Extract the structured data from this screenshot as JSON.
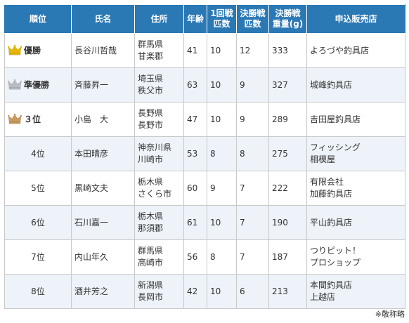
{
  "headers": {
    "rank": "順位",
    "name": "氏名",
    "address": "住所",
    "age": "年齢",
    "round1": [
      "1回戦",
      "匹数"
    ],
    "final_count": [
      "決勝戦",
      "匹数"
    ],
    "final_weight": [
      "決勝戦",
      "重量(g)"
    ],
    "shop": "申込販売店"
  },
  "colors": {
    "header_bg": "#2a78b4",
    "alt_row_bg": "#eef3f9",
    "gold": "#e7b800",
    "silver": "#b9bcc2",
    "bronze": "#c99a5e"
  },
  "rows": [
    {
      "rank": "優勝",
      "crown": "gold-crown-icon",
      "name": "長谷川哲哉",
      "pref": "群馬県",
      "city": "甘楽郡",
      "age": "41",
      "round1": "10",
      "final_count": "12",
      "weight": "333",
      "shop": [
        "よろづや釣具店"
      ]
    },
    {
      "rank": "準優勝",
      "crown": "silver-crown-icon",
      "name": "斉藤昇一",
      "pref": "埼玉県",
      "city": "秩父市",
      "age": "63",
      "round1": "10",
      "final_count": "9",
      "weight": "327",
      "shop": [
        "城峰釣具店"
      ]
    },
    {
      "rank": "３位",
      "crown": "bronze-crown-icon",
      "name": "小島　大",
      "pref": "長野県",
      "city": "長野市",
      "age": "47",
      "round1": "10",
      "final_count": "9",
      "weight": "289",
      "shop": [
        "吉田屋釣具店"
      ]
    },
    {
      "rank": "4位",
      "name": "本田晴彦",
      "pref": "神奈川県",
      "city": "川崎市",
      "age": "53",
      "round1": "8",
      "final_count": "8",
      "weight": "275",
      "shop": [
        "フィッシング",
        "相模屋"
      ]
    },
    {
      "rank": "5位",
      "name": "黒崎文夫",
      "pref": "栃木県",
      "city": "さくら市",
      "age": "60",
      "round1": "9",
      "final_count": "7",
      "weight": "222",
      "shop": [
        "有限会社",
        "加藤釣具店"
      ]
    },
    {
      "rank": "6位",
      "name": "石川嘉一",
      "pref": "栃木県",
      "city": "那須郡",
      "age": "61",
      "round1": "10",
      "final_count": "7",
      "weight": "190",
      "shop": [
        "平山釣具店"
      ]
    },
    {
      "rank": "7位",
      "name": "内山年久",
      "pref": "群馬県",
      "city": "高崎市",
      "age": "56",
      "round1": "8",
      "final_count": "7",
      "weight": "187",
      "shop": [
        "つりピット！",
        "プロショップ"
      ]
    },
    {
      "rank": "8位",
      "name": "酒井芳之",
      "pref": "新潟県",
      "city": "長岡市",
      "age": "42",
      "round1": "10",
      "final_count": "6",
      "weight": "213",
      "shop": [
        "本間釣具店",
        "上越店"
      ]
    }
  ],
  "note": "※敬称略"
}
